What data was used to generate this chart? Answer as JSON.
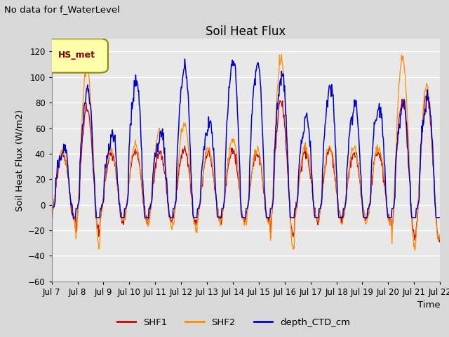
{
  "title": "Soil Heat Flux",
  "suptitle": "No data for f_WaterLevel",
  "ylabel": "Soil Heat Flux (W/m2)",
  "xlabel": "Time",
  "ylim": [
    -60,
    130
  ],
  "yticks": [
    -60,
    -40,
    -20,
    0,
    20,
    40,
    60,
    80,
    100,
    120
  ],
  "xtick_labels": [
    "Jul 7",
    "Jul 8",
    "Jul 9",
    "Jul 10",
    "Jul 11",
    "Jul 12",
    "Jul 13",
    "Jul 14",
    "Jul 15",
    "Jul 16",
    "Jul 17",
    "Jul 18",
    "Jul 19",
    "Jul 20",
    "Jul 21",
    "Jul 22"
  ],
  "legend_label": "HS_met",
  "series_labels": [
    "SHF1",
    "SHF2",
    "depth_CTD_cm"
  ],
  "series_colors": [
    "#cc0000",
    "#ff8c00",
    "#0000cc"
  ],
  "background_color": "#d8d8d8",
  "plot_bg_color": "#e8e8e8",
  "n_days": 16,
  "points_per_day": 48
}
